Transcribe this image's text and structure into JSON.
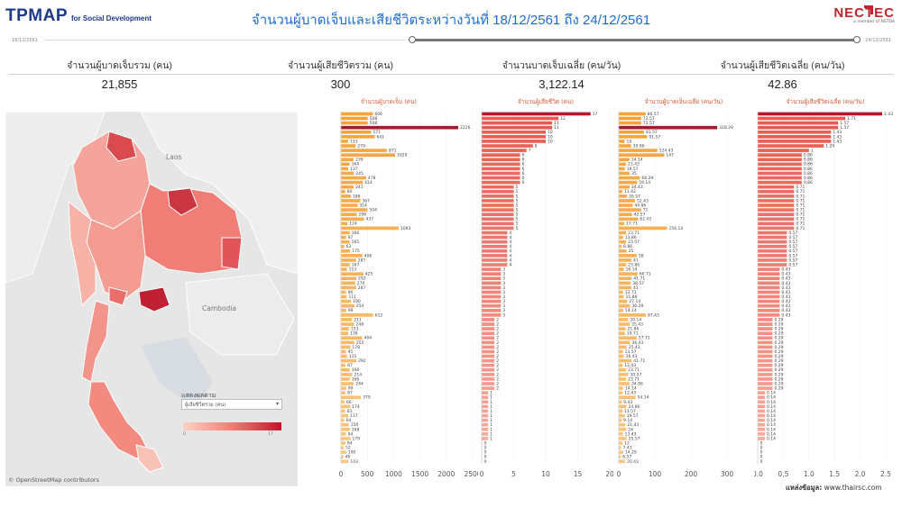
{
  "header": {
    "logo_main": "TPMAP",
    "logo_sub": "for Social Development",
    "title": "จำนวนผู้บาดเจ็บและเสียชีวิตระหว่างวันที่ 18/12/2561 ถึง 24/12/2561",
    "logo_right": "NECTEC",
    "logo_right_sub": "a member of NSTDA"
  },
  "slider": {
    "start": "18/12/2561",
    "end": "24/12/2561"
  },
  "kpis": [
    {
      "label": "จำนวนผู้บาดเจ็บรวม (คน)",
      "value": "21,855"
    },
    {
      "label": "จำนวนผู้เสียชีวิตรวม (คน)",
      "value": "300"
    },
    {
      "label": "จำนวนบาดเจ็บเฉลี่ย (คน/วัน)",
      "value": "3,122.14"
    },
    {
      "label": "จำนวนผู้เสียชีวิตเฉลี่ย (คน/วัน)",
      "value": "42.86"
    }
  ],
  "map": {
    "countries": [
      "Laos",
      "Cambodia"
    ],
    "credit": "© OpenStreetMap contributors",
    "legend_title": "แสดงผลตาม",
    "legend_select": "ผู้เสียชีวิตรวม  (คน)",
    "legend_min": "0",
    "legend_max": "17"
  },
  "chart_data": [
    {
      "type": "bar",
      "title": "จำนวนผู้บาดเจ็บ (คน)",
      "orientation": "horizontal",
      "xlim": [
        0,
        2500
      ],
      "xticks": [
        "0",
        "500",
        "1000",
        "1500",
        "2000",
        "2500"
      ],
      "values": [
        606,
        508,
        508,
        2226,
        571,
        641,
        133,
        279,
        871,
        1029,
        239,
        164,
        137,
        245,
        478,
        414,
        241,
        80,
        186,
        367,
        314,
        504,
        298,
        437,
        124,
        1093,
        166,
        97,
        165,
        62,
        175,
        406,
        287,
        167,
        113,
        425,
        292,
        270,
        287,
        96,
        111,
        190,
        254,
        99,
        612,
        211,
        248,
        153,
        138,
        404,
        255,
        178,
        95,
        115,
        292,
        87,
        166,
        214,
        166,
        244,
        99,
        87,
        379,
        66,
        174,
        81,
        137,
        64,
        150,
        168,
        94,
        179,
        84,
        52,
        100,
        46,
        143
      ]
    },
    {
      "type": "bar",
      "title": "จำนวนผู้เสียชีวิต (คน)",
      "orientation": "horizontal",
      "xlim": [
        0,
        20
      ],
      "xticks": [
        "0",
        "5",
        "10",
        "15",
        "20"
      ],
      "values": [
        17,
        12,
        11,
        11,
        10,
        10,
        10,
        8,
        7,
        6,
        6,
        6,
        6,
        6,
        6,
        6,
        5,
        5,
        5,
        5,
        5,
        5,
        5,
        5,
        5,
        5,
        4,
        4,
        4,
        4,
        4,
        4,
        4,
        4,
        3,
        3,
        3,
        3,
        3,
        3,
        3,
        3,
        3,
        3,
        3,
        2,
        2,
        2,
        2,
        2,
        2,
        2,
        2,
        2,
        2,
        2,
        2,
        2,
        2,
        2,
        2,
        1,
        1,
        1,
        1,
        1,
        1,
        1,
        1,
        1,
        1,
        1,
        0,
        0,
        0,
        0,
        0
      ]
    },
    {
      "type": "bar",
      "title": "จำนวนผู้บาดเจ็บเฉลี่ย (คน/วัน)",
      "orientation": "horizontal",
      "xlim": [
        0,
        350
      ],
      "xticks": [
        "0",
        "100",
        "200",
        "300"
      ],
      "values": [
        86.57,
        72.57,
        72.57,
        318.29,
        81.57,
        91.57,
        19,
        39.86,
        124.43,
        147,
        34.14,
        23.43,
        19.57,
        35,
        68.29,
        59.14,
        34.43,
        11.43,
        26.57,
        52.43,
        44.86,
        72,
        42.57,
        62.43,
        17.71,
        156.14,
        23.71,
        13.86,
        23.57,
        8.86,
        25,
        58,
        41,
        23.86,
        16.14,
        60.71,
        41.71,
        38.57,
        41,
        13.71,
        15.86,
        27.14,
        36.29,
        14.14,
        87.43,
        30.14,
        35.43,
        21.86,
        19.71,
        57.71,
        36.43,
        25.43,
        13.57,
        16.43,
        41.71,
        12.43,
        23.71,
        30.57,
        23.71,
        34.86,
        14.14,
        12.43,
        54.14,
        9.43,
        24.86,
        11.57,
        19.57,
        9.14,
        21.43,
        24,
        13.43,
        25.57,
        12,
        7.43,
        14.29,
        6.57,
        20.43
      ]
    },
    {
      "type": "bar",
      "title": "จำนวนผู้เสียชีวิตเฉลี่ย (คน/วัน)",
      "orientation": "horizontal",
      "xlim": [
        0,
        2.5
      ],
      "xticks": [
        "0.0",
        "0.5",
        "1.0",
        "1.5",
        "2.0",
        "2.5"
      ],
      "values": [
        2.43,
        1.71,
        1.57,
        1.57,
        1.43,
        1.43,
        1.43,
        1.29,
        1,
        0.86,
        0.86,
        0.86,
        0.86,
        0.86,
        0.86,
        0.86,
        0.71,
        0.71,
        0.71,
        0.71,
        0.71,
        0.71,
        0.71,
        0.71,
        0.71,
        0.71,
        0.57,
        0.57,
        0.57,
        0.57,
        0.57,
        0.57,
        0.57,
        0.57,
        0.43,
        0.43,
        0.43,
        0.43,
        0.43,
        0.43,
        0.43,
        0.43,
        0.43,
        0.43,
        0.43,
        0.29,
        0.29,
        0.29,
        0.29,
        0.29,
        0.29,
        0.29,
        0.29,
        0.29,
        0.29,
        0.29,
        0.29,
        0.29,
        0.29,
        0.29,
        0.29,
        0.14,
        0.14,
        0.14,
        0.14,
        0.14,
        0.14,
        0.14,
        0.14,
        0.14,
        0.14,
        0.14,
        0,
        0,
        0,
        0,
        0
      ]
    }
  ],
  "colors": {
    "injured": "#f5a33c",
    "injured_max": "#a6192e",
    "deaths": "#e8584d",
    "deaths_max": "#b5172f"
  },
  "source": {
    "label": "แหล่งข้อมูล:",
    "value": "www.thairsc.com"
  }
}
